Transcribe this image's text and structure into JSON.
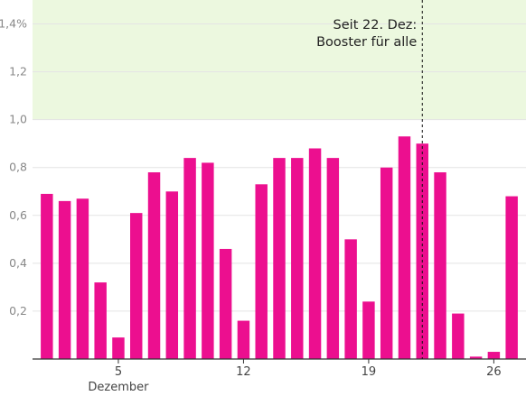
{
  "chart_data": {
    "type": "bar",
    "x": [
      1,
      2,
      3,
      4,
      5,
      6,
      7,
      8,
      9,
      10,
      11,
      12,
      13,
      14,
      15,
      16,
      17,
      18,
      19,
      20,
      21,
      22,
      23,
      24,
      25,
      26,
      27
    ],
    "values": [
      0.69,
      0.66,
      0.67,
      0.32,
      0.09,
      0.61,
      0.78,
      0.7,
      0.84,
      0.82,
      0.46,
      0.16,
      0.73,
      0.84,
      0.84,
      0.88,
      0.84,
      0.5,
      0.24,
      0.8,
      0.93,
      0.9,
      0.78,
      0.19,
      0.01,
      0.03,
      0.68
    ],
    "x_tick_values": [
      5,
      12,
      19,
      26
    ],
    "x_tick_labels": [
      "5",
      "12",
      "19",
      "26"
    ],
    "x_month_label": "Dezember",
    "y_tick_values": [
      0.2,
      0.4,
      0.6,
      0.8,
      1.0,
      1.2,
      1.4
    ],
    "y_tick_labels": [
      "0,2",
      "0,4",
      "0,6",
      "0,8",
      "1,0",
      "1,2",
      "1,4%"
    ],
    "ylim": [
      0,
      1.5
    ],
    "xlim": [
      0.2,
      27.8
    ],
    "highlight_band": [
      1.0,
      1.5
    ],
    "grid": true,
    "annotation": {
      "x": 22,
      "lines": [
        "Seit 22. Dez:",
        "Booster für alle"
      ]
    },
    "title": "",
    "xlabel": "",
    "ylabel": ""
  },
  "colors": {
    "bar": "#ec0f8f",
    "band": "#ecf8df",
    "grid": "#e4e4e4",
    "axis": "#333333"
  }
}
